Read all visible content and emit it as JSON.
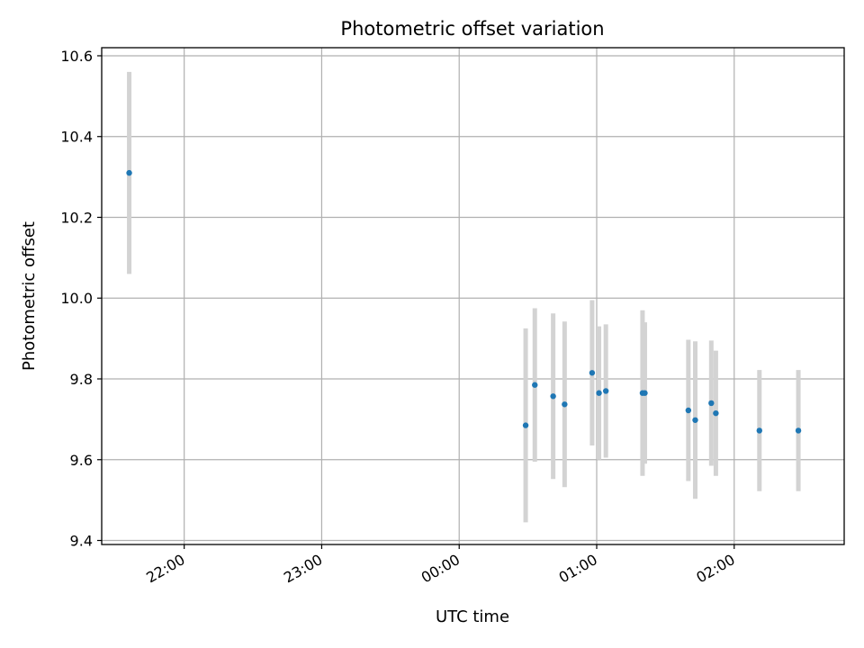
{
  "chart_data": {
    "type": "scatter",
    "title": "Photometric offset variation",
    "xlabel": "UTC time",
    "ylabel": "Photometric offset",
    "x_ticks": [
      "22:00",
      "23:00",
      "00:00",
      "01:00",
      "02:00"
    ],
    "y_ticks": [
      "9.4",
      "9.6",
      "9.8",
      "10.0",
      "10.2",
      "10.4",
      "10.6"
    ],
    "ylim": [
      9.39,
      10.62
    ],
    "xlim": [
      "21:24",
      "02:48"
    ],
    "grid": true,
    "colors": {
      "points": "#1f77b4",
      "error_bars": "#d3d3d3"
    },
    "points": [
      {
        "x": "21:36",
        "y": 10.31,
        "err": 0.25
      },
      {
        "x": "00:29",
        "y": 9.685,
        "err": 0.24
      },
      {
        "x": "00:33",
        "y": 9.785,
        "err": 0.19
      },
      {
        "x": "00:41",
        "y": 9.757,
        "err": 0.205
      },
      {
        "x": "00:46",
        "y": 9.737,
        "err": 0.205
      },
      {
        "x": "00:58",
        "y": 9.815,
        "err": 0.18
      },
      {
        "x": "01:01",
        "y": 9.765,
        "err": 0.165
      },
      {
        "x": "01:04",
        "y": 9.77,
        "err": 0.165
      },
      {
        "x": "01:20",
        "y": 9.765,
        "err": 0.205
      },
      {
        "x": "01:21",
        "y": 9.765,
        "err": 0.175
      },
      {
        "x": "01:40",
        "y": 9.722,
        "err": 0.175
      },
      {
        "x": "01:43",
        "y": 9.698,
        "err": 0.195
      },
      {
        "x": "01:50",
        "y": 9.74,
        "err": 0.155
      },
      {
        "x": "01:52",
        "y": 9.715,
        "err": 0.155
      },
      {
        "x": "02:11",
        "y": 9.672,
        "err": 0.15
      },
      {
        "x": "02:28",
        "y": 9.672,
        "err": 0.15
      }
    ]
  }
}
